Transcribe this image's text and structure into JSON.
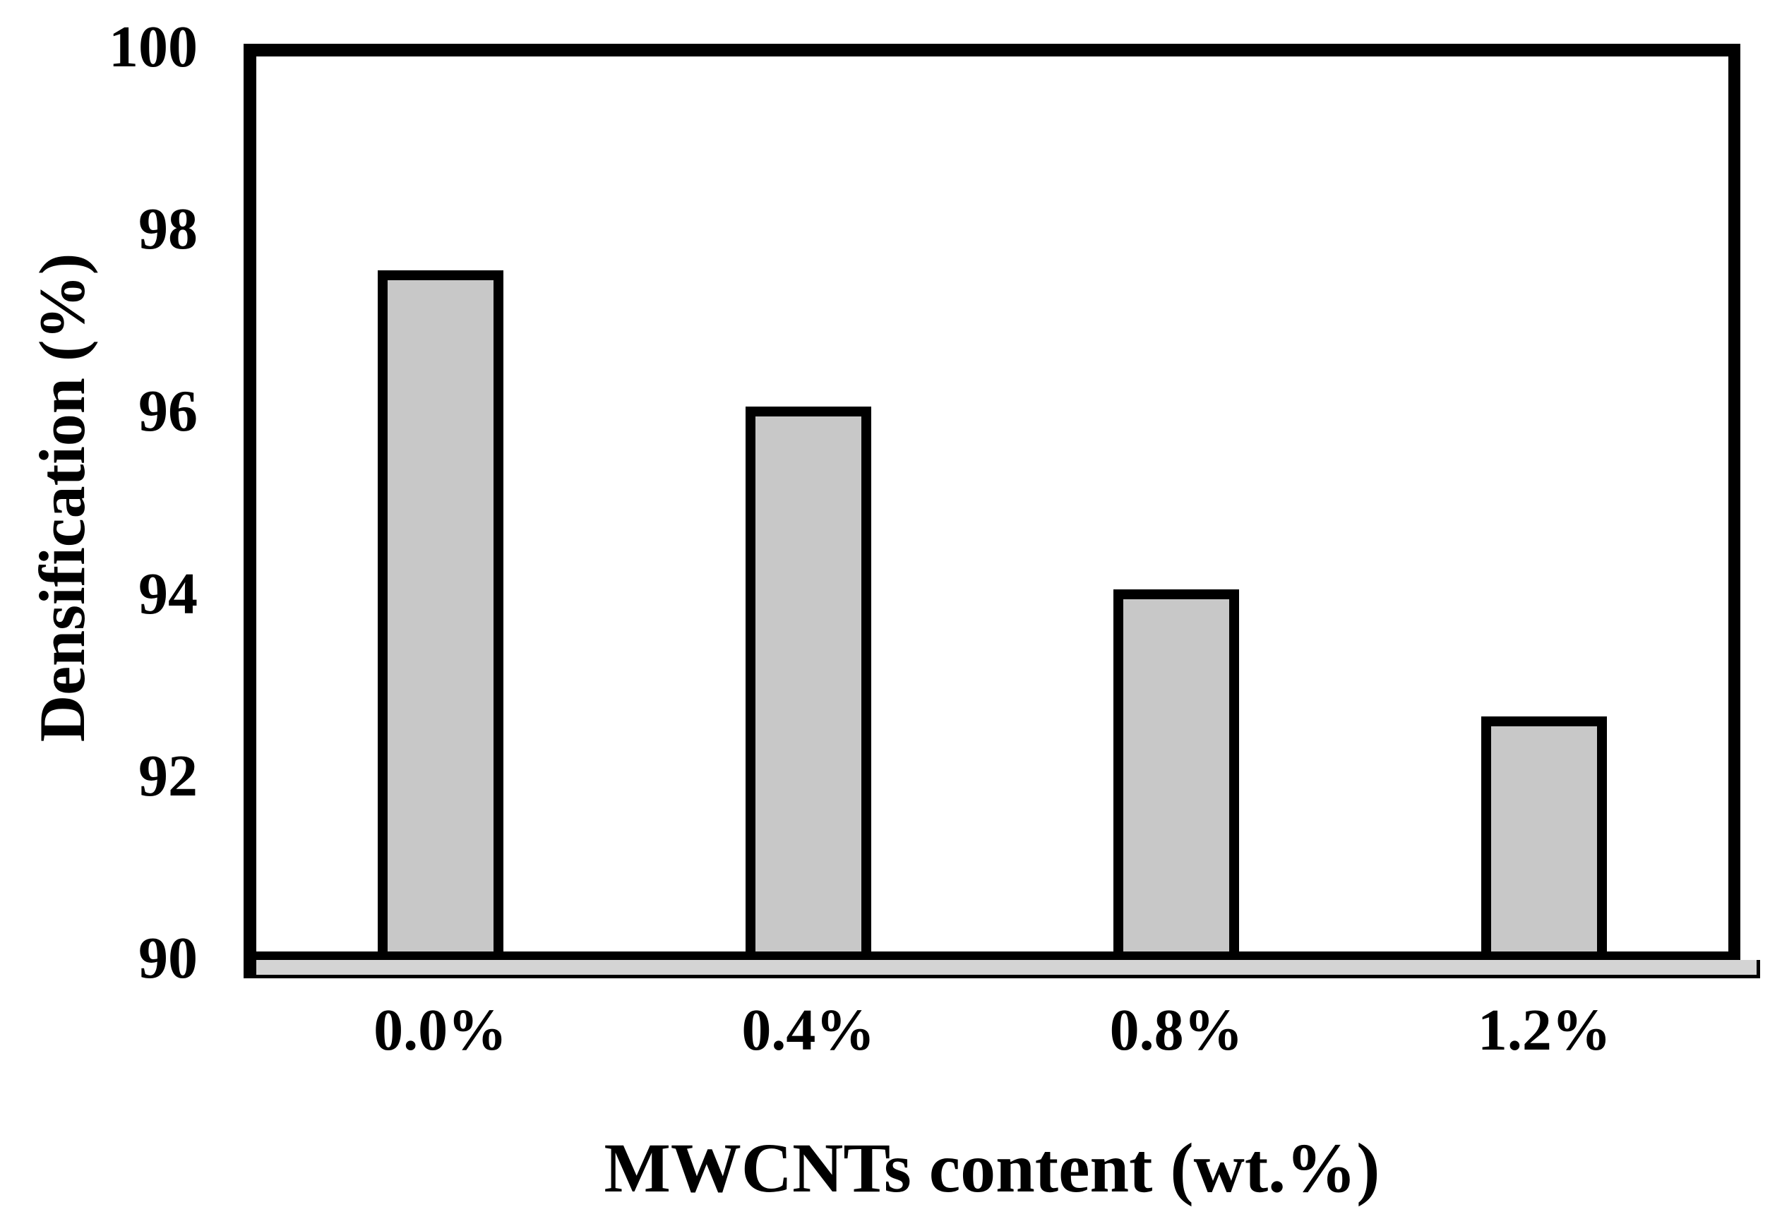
{
  "chart_data": {
    "type": "bar",
    "title": "",
    "xlabel": "MWCNTs content (wt.%)",
    "ylabel": "Densification (%)",
    "categories": [
      "0.0%",
      "0.4%",
      "0.8%",
      "1.2%"
    ],
    "values": [
      97.5,
      96.0,
      94.0,
      92.6
    ],
    "ylim": [
      90,
      100
    ],
    "yticks": [
      90,
      92,
      94,
      96,
      98,
      100
    ],
    "grid": false,
    "legend": false,
    "bar_fill_color": "#c8c8c8",
    "bar_border_color": "#000000",
    "frame_color": "#000000",
    "floor_color": "#d4d4d4",
    "background_color": "#ffffff"
  }
}
